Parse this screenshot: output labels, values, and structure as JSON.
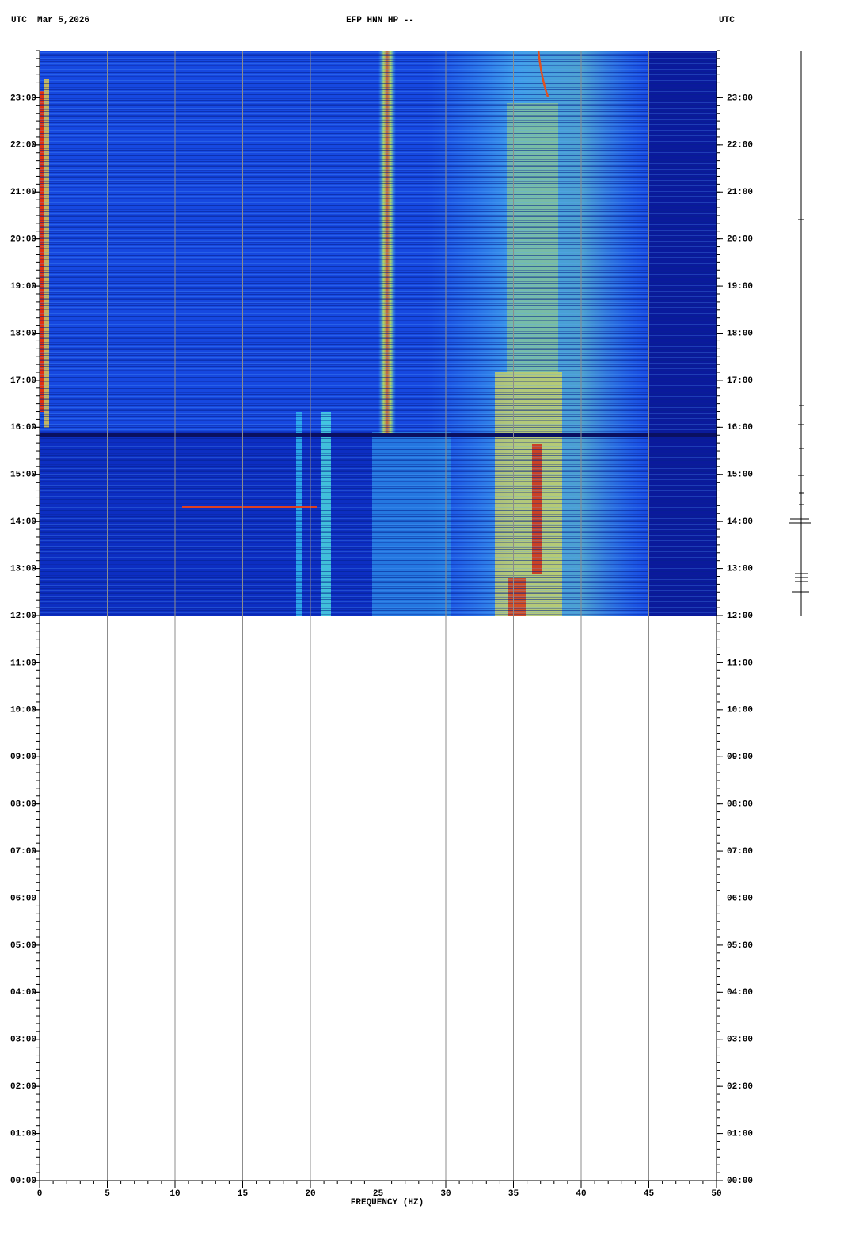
{
  "chart_data": {
    "type": "spectrogram",
    "title": "EFP HNN HP --",
    "left_header": "UTC  Mar 5,2026",
    "right_header": "UTC",
    "x_label": "FREQUENCY (HZ)",
    "xlim": [
      0,
      50
    ],
    "xticks": [
      0,
      5,
      10,
      15,
      20,
      25,
      30,
      35,
      40,
      45,
      50
    ],
    "ylim": [
      0,
      24
    ],
    "yticks": [
      {
        "value": 0,
        "label": "00:00"
      },
      {
        "value": 1,
        "label": "01:00"
      },
      {
        "value": 2,
        "label": "02:00"
      },
      {
        "value": 3,
        "label": "03:00"
      },
      {
        "value": 4,
        "label": "04:00"
      },
      {
        "value": 5,
        "label": "05:00"
      },
      {
        "value": 6,
        "label": "06:00"
      },
      {
        "value": 7,
        "label": "07:00"
      },
      {
        "value": 8,
        "label": "08:00"
      },
      {
        "value": 9,
        "label": "09:00"
      },
      {
        "value": 10,
        "label": "10:00"
      },
      {
        "value": 11,
        "label": "11:00"
      },
      {
        "value": 12,
        "label": "12:00"
      },
      {
        "value": 13,
        "label": "13:00"
      },
      {
        "value": 14,
        "label": "14:00"
      },
      {
        "value": 15,
        "label": "15:00"
      },
      {
        "value": 16,
        "label": "16:00"
      },
      {
        "value": 17,
        "label": "17:00"
      },
      {
        "value": 18,
        "label": "18:00"
      },
      {
        "value": 19,
        "label": "19:00"
      },
      {
        "value": 20,
        "label": "20:00"
      },
      {
        "value": 21,
        "label": "21:00"
      },
      {
        "value": 22,
        "label": "22:00"
      },
      {
        "value": 23,
        "label": "23:00"
      }
    ],
    "grid": true
  }
}
